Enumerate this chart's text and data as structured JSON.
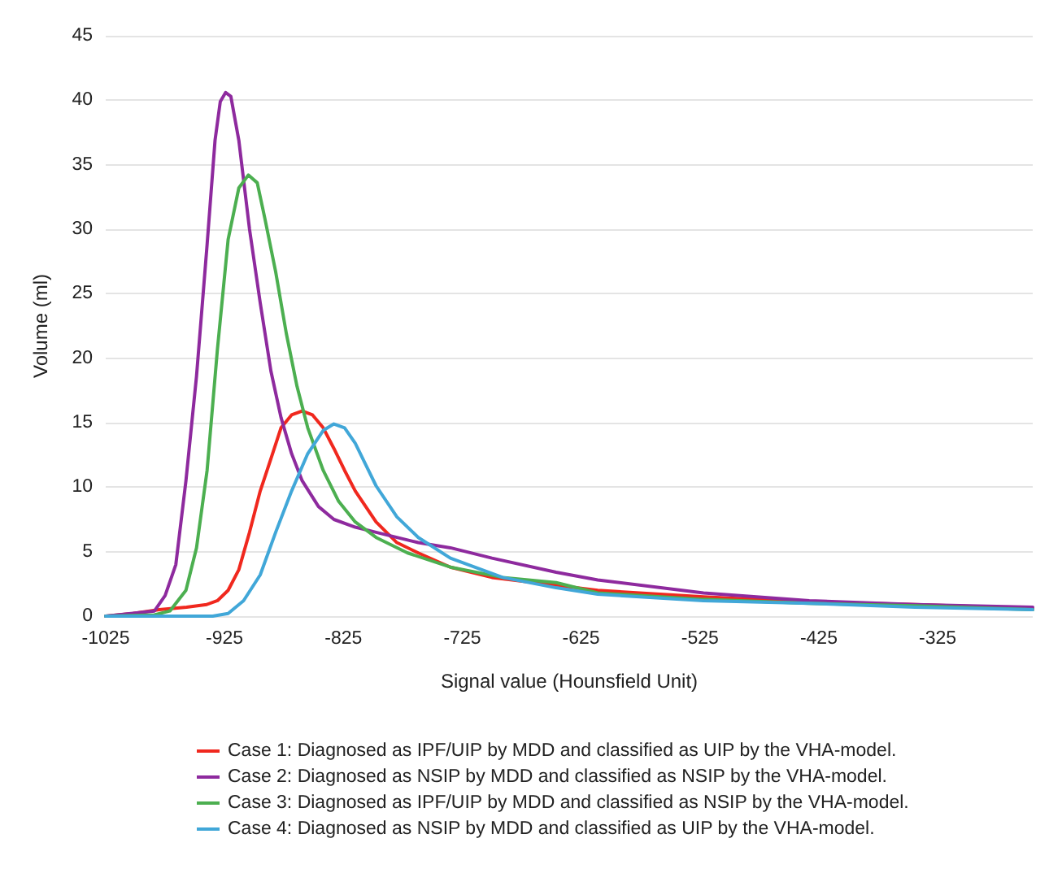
{
  "chart_data": {
    "type": "line",
    "xlabel": "Signal value (Hounsfield Unit)",
    "ylabel": "Volume (ml)",
    "xlim": [
      -1025,
      -245
    ],
    "ylim": [
      0,
      45
    ],
    "xticks": [
      -1025,
      -925,
      -825,
      -725,
      -625,
      -525,
      -425,
      -325
    ],
    "yticks": [
      0,
      5,
      10,
      15,
      20,
      25,
      30,
      35,
      40,
      45
    ],
    "grid": "y",
    "legend": "bottom",
    "marker": "none",
    "line_style": "solid",
    "series": [
      {
        "name": "Case 1: Diagnosed as IPF/UIP by MDD and classified as UIP by the VHA-model.",
        "color": "#f0281e",
        "x": [
          -1025,
          -1002,
          -980,
          -957,
          -940,
          -931,
          -922,
          -913,
          -904,
          -895,
          -886,
          -877.5,
          -868.6,
          -859.7,
          -851,
          -842,
          -833,
          -824,
          -815,
          -797.5,
          -780,
          -762,
          -735,
          -700,
          -646,
          -611,
          -522,
          -433,
          -344,
          -245
        ],
        "values": [
          0,
          0.2,
          0.5,
          0.7,
          0.9,
          1.2,
          2,
          3.6,
          6.5,
          9.7,
          12.2,
          14.6,
          15.6,
          15.9,
          15.6,
          14.6,
          13,
          11.3,
          9.7,
          7.3,
          5.7,
          4.9,
          3.8,
          3,
          2.4,
          2,
          1.5,
          1.1,
          0.9,
          0.6
        ]
      },
      {
        "name": "Case 2: Diagnosed as NSIP by MDD and classified as NSIP by the VHA-model.",
        "color": "#8e2a9e",
        "x": [
          -1025,
          -984,
          -975,
          -966,
          -957.5,
          -948.6,
          -939.7,
          -933,
          -928.6,
          -924.1,
          -919.7,
          -913,
          -904,
          -895,
          -886,
          -877.5,
          -868.6,
          -859.7,
          -846,
          -833,
          -815,
          -797.5,
          -762,
          -735,
          -700,
          -646,
          -611,
          -522,
          -433,
          -344,
          -245
        ],
        "values": [
          0,
          0.4,
          1.6,
          4,
          10.5,
          18.6,
          28.8,
          36.9,
          39.9,
          40.6,
          40.3,
          36.9,
          30,
          24.3,
          19,
          15.4,
          12.6,
          10.5,
          8.5,
          7.5,
          6.9,
          6.5,
          5.7,
          5.3,
          4.5,
          3.4,
          2.8,
          1.8,
          1.2,
          0.9,
          0.7
        ]
      },
      {
        "name": "Case 3: Diagnosed as IPF/UIP by MDD and classified as NSIP by the VHA-model.",
        "color": "#4caf50",
        "x": [
          -1025,
          -984,
          -971,
          -957.5,
          -948.6,
          -939.7,
          -931,
          -922,
          -913,
          -905,
          -897.5,
          -891,
          -882,
          -873,
          -864,
          -855,
          -842,
          -829,
          -815,
          -797.5,
          -771,
          -735,
          -691,
          -646,
          -611,
          -522,
          -433,
          -344,
          -245
        ],
        "values": [
          0,
          0.1,
          0.4,
          2,
          5.3,
          11.3,
          20.7,
          29.2,
          33.2,
          34.2,
          33.6,
          30.8,
          26.7,
          21.9,
          17.8,
          14.6,
          11.3,
          8.9,
          7.3,
          6.1,
          4.9,
          3.8,
          3,
          2.6,
          1.8,
          1.3,
          1,
          0.8,
          0.5
        ]
      },
      {
        "name": "Case 4: Diagnosed as NSIP by MDD and classified as UIP by the VHA-model.",
        "color": "#41a7d8",
        "x": [
          -1025,
          -935,
          -922,
          -909,
          -895,
          -882,
          -868.6,
          -855,
          -842,
          -833,
          -824,
          -815,
          -806,
          -797.5,
          -780,
          -762,
          -735,
          -691,
          -646,
          -611,
          -522,
          -433,
          -344,
          -245
        ],
        "values": [
          0,
          0,
          0.2,
          1.2,
          3.2,
          6.5,
          9.7,
          12.6,
          14.4,
          14.9,
          14.6,
          13.4,
          11.7,
          10.1,
          7.7,
          6.1,
          4.5,
          3,
          2.2,
          1.7,
          1.2,
          1,
          0.7,
          0.5
        ]
      }
    ]
  }
}
